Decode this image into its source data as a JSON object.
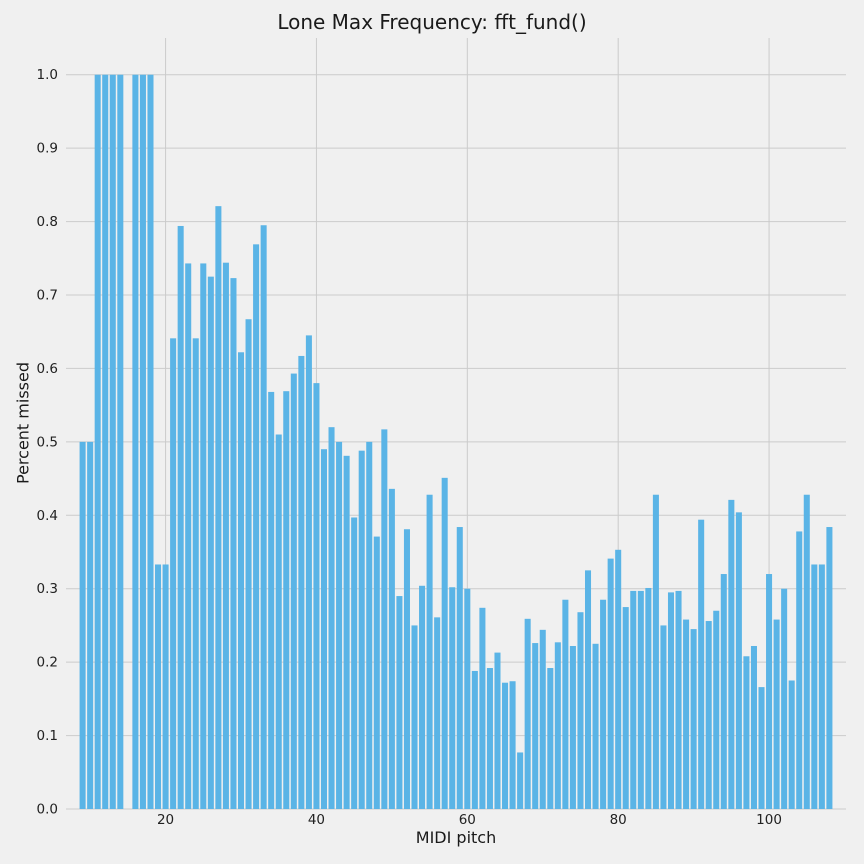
{
  "chart_data": {
    "type": "bar",
    "title": "Lone Max Frequency: fft_fund()",
    "xlabel": "MIDI pitch",
    "ylabel": "Percent missed",
    "xlim": [
      6.8,
      110.2
    ],
    "ylim": [
      0,
      1.05
    ],
    "xticks": [
      20,
      40,
      60,
      80,
      100
    ],
    "yticks": [
      0.0,
      0.1,
      0.2,
      0.3,
      0.4,
      0.5,
      0.6,
      0.7,
      0.8,
      0.9,
      1.0
    ],
    "xtick_labels": [
      "20",
      "40",
      "60",
      "80",
      "100"
    ],
    "ytick_labels": [
      "0.0",
      "0.1",
      "0.2",
      "0.3",
      "0.4",
      "0.5",
      "0.6",
      "0.7",
      "0.8",
      "0.9",
      "1.0"
    ],
    "grid": true,
    "bar_color": "#5ab4e6",
    "background": "#f0f0f0",
    "grid_color": "#cbcbcb",
    "x": [
      9,
      10,
      11,
      12,
      13,
      14,
      16,
      17,
      18,
      19,
      20,
      21,
      22,
      23,
      24,
      25,
      26,
      27,
      28,
      29,
      30,
      31,
      32,
      33,
      34,
      35,
      36,
      37,
      38,
      39,
      40,
      41,
      42,
      43,
      44,
      45,
      46,
      47,
      48,
      49,
      50,
      51,
      52,
      53,
      54,
      55,
      56,
      57,
      58,
      59,
      60,
      61,
      62,
      63,
      64,
      65,
      66,
      67,
      68,
      69,
      70,
      71,
      72,
      73,
      74,
      75,
      76,
      77,
      78,
      79,
      80,
      81,
      82,
      83,
      84,
      85,
      86,
      87,
      88,
      89,
      90,
      91,
      92,
      93,
      94,
      95,
      96,
      97,
      98,
      99,
      100,
      101,
      102,
      103,
      104,
      105,
      106,
      107,
      108
    ],
    "values": [
      0.5,
      0.5,
      1.0,
      1.0,
      1.0,
      1.0,
      1.0,
      1.0,
      1.0,
      0.333,
      0.333,
      0.641,
      0.794,
      0.743,
      0.641,
      0.743,
      0.725,
      0.821,
      0.744,
      0.723,
      0.622,
      0.667,
      0.769,
      0.795,
      0.568,
      0.51,
      0.569,
      0.593,
      0.617,
      0.645,
      0.58,
      0.49,
      0.52,
      0.5,
      0.481,
      0.397,
      0.488,
      0.5,
      0.371,
      0.517,
      0.436,
      0.29,
      0.381,
      0.25,
      0.304,
      0.428,
      0.261,
      0.451,
      0.302,
      0.384,
      0.3,
      0.188,
      0.274,
      0.192,
      0.213,
      0.172,
      0.174,
      0.077,
      0.259,
      0.226,
      0.244,
      0.192,
      0.227,
      0.285,
      0.222,
      0.268,
      0.325,
      0.225,
      0.285,
      0.341,
      0.353,
      0.275,
      0.297,
      0.297,
      0.301,
      0.428,
      0.25,
      0.295,
      0.297,
      0.258,
      0.245,
      0.394,
      0.256,
      0.27,
      0.32,
      0.421,
      0.404,
      0.208,
      0.222,
      0.166,
      0.32,
      0.258,
      0.3,
      0.175,
      0.378,
      0.428,
      0.333,
      0.333,
      0.384
    ]
  }
}
